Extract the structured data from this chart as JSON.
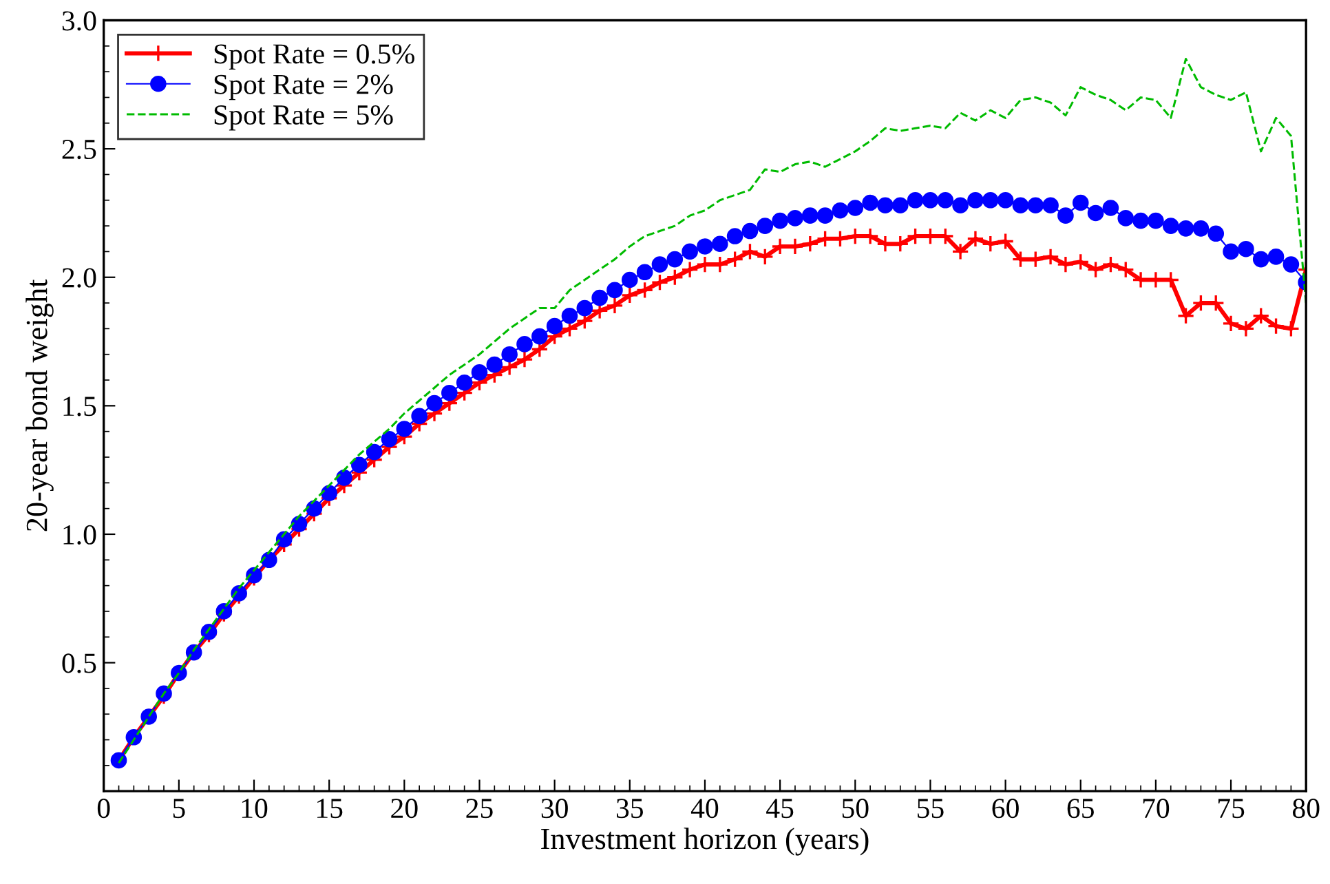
{
  "chart_data": {
    "type": "line",
    "xlabel": "Investment horizon (years)",
    "ylabel": "20-year bond weight",
    "x": [
      1,
      2,
      3,
      4,
      5,
      6,
      7,
      8,
      9,
      10,
      11,
      12,
      13,
      14,
      15,
      16,
      17,
      18,
      19,
      20,
      21,
      22,
      23,
      24,
      25,
      26,
      27,
      28,
      29,
      30,
      31,
      32,
      33,
      34,
      35,
      36,
      37,
      38,
      39,
      40,
      41,
      42,
      43,
      44,
      45,
      46,
      47,
      48,
      49,
      50,
      51,
      52,
      53,
      54,
      55,
      56,
      57,
      58,
      59,
      60,
      61,
      62,
      63,
      64,
      65,
      66,
      67,
      68,
      69,
      70,
      71,
      72,
      73,
      74,
      75,
      76,
      77,
      78,
      79,
      80
    ],
    "series": [
      {
        "name": "Spot Rate = 0.5%",
        "color": "#ff0000",
        "marker": "cross",
        "line_style": "solid",
        "values": [
          0.12,
          0.21,
          0.29,
          0.37,
          0.46,
          0.54,
          0.61,
          0.69,
          0.76,
          0.83,
          0.9,
          0.96,
          1.02,
          1.08,
          1.14,
          1.19,
          1.24,
          1.29,
          1.34,
          1.38,
          1.43,
          1.47,
          1.51,
          1.55,
          1.59,
          1.62,
          1.65,
          1.68,
          1.72,
          1.77,
          1.8,
          1.83,
          1.87,
          1.89,
          1.93,
          1.95,
          1.98,
          2.0,
          2.03,
          2.05,
          2.05,
          2.07,
          2.1,
          2.08,
          2.12,
          2.12,
          2.13,
          2.15,
          2.15,
          2.16,
          2.16,
          2.13,
          2.13,
          2.16,
          2.16,
          2.16,
          2.1,
          2.15,
          2.13,
          2.14,
          2.07,
          2.07,
          2.08,
          2.05,
          2.06,
          2.03,
          2.05,
          2.03,
          1.99,
          1.99,
          1.99,
          1.85,
          1.9,
          1.9,
          1.82,
          1.8,
          1.85,
          1.81,
          1.8,
          2.03
        ]
      },
      {
        "name": "Spot Rate = 2%",
        "color": "#0000ff",
        "marker": "circle",
        "line_style": "solid",
        "values": [
          0.12,
          0.21,
          0.29,
          0.38,
          0.46,
          0.54,
          0.62,
          0.7,
          0.77,
          0.84,
          0.9,
          0.98,
          1.04,
          1.1,
          1.16,
          1.22,
          1.27,
          1.32,
          1.37,
          1.41,
          1.46,
          1.51,
          1.55,
          1.59,
          1.63,
          1.66,
          1.7,
          1.74,
          1.77,
          1.81,
          1.85,
          1.88,
          1.92,
          1.95,
          1.99,
          2.02,
          2.05,
          2.07,
          2.1,
          2.12,
          2.13,
          2.16,
          2.18,
          2.2,
          2.22,
          2.23,
          2.24,
          2.24,
          2.26,
          2.27,
          2.29,
          2.28,
          2.28,
          2.3,
          2.3,
          2.3,
          2.28,
          2.3,
          2.3,
          2.3,
          2.28,
          2.28,
          2.28,
          2.24,
          2.29,
          2.25,
          2.27,
          2.23,
          2.22,
          2.22,
          2.2,
          2.19,
          2.19,
          2.17,
          2.1,
          2.11,
          2.07,
          2.08,
          2.05,
          1.98
        ]
      },
      {
        "name": "Spot Rate = 5%",
        "color": "#00bb00",
        "marker": "none",
        "line_style": "dashed",
        "values": [
          0.11,
          0.2,
          0.29,
          0.38,
          0.46,
          0.55,
          0.63,
          0.71,
          0.79,
          0.86,
          0.93,
          1.0,
          1.07,
          1.13,
          1.19,
          1.25,
          1.31,
          1.36,
          1.41,
          1.47,
          1.52,
          1.57,
          1.62,
          1.66,
          1.7,
          1.75,
          1.8,
          1.84,
          1.88,
          1.88,
          1.95,
          1.99,
          2.03,
          2.07,
          2.12,
          2.16,
          2.18,
          2.2,
          2.24,
          2.26,
          2.3,
          2.32,
          2.34,
          2.42,
          2.41,
          2.44,
          2.45,
          2.43,
          2.46,
          2.49,
          2.53,
          2.58,
          2.57,
          2.58,
          2.59,
          2.58,
          2.64,
          2.61,
          2.65,
          2.62,
          2.69,
          2.7,
          2.68,
          2.63,
          2.74,
          2.71,
          2.69,
          2.65,
          2.7,
          2.69,
          2.62,
          2.85,
          2.74,
          2.71,
          2.69,
          2.72,
          2.49,
          2.62,
          2.55,
          1.9
        ]
      }
    ],
    "xlim": [
      0,
      80
    ],
    "ylim": [
      0,
      3
    ],
    "xticks": [
      0,
      5,
      10,
      15,
      20,
      25,
      30,
      35,
      40,
      45,
      50,
      55,
      60,
      65,
      70,
      75,
      80
    ],
    "yticks": [
      0.5,
      {
        "value": 1,
        "label": "1.0"
      },
      1.5,
      {
        "value": 2,
        "label": "2.0"
      },
      2.5,
      {
        "value": 3,
        "label": "3.0"
      }
    ],
    "legend": "top left",
    "grid": false
  }
}
